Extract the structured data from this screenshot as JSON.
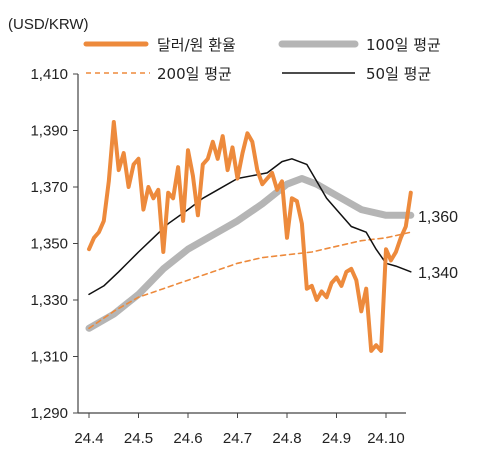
{
  "chart_data": {
    "type": "line",
    "unit_label": "(USD/KRW)",
    "ylim": [
      1290,
      1410
    ],
    "y_ticks": [
      "1,410",
      "1,390",
      "1,370",
      "1,350",
      "1,330",
      "1,310",
      "1,290"
    ],
    "y_tick_values": [
      1410,
      1390,
      1370,
      1350,
      1330,
      1310,
      1290
    ],
    "x_range": [
      24.4,
      24.105
    ],
    "x_ticks": [
      "24.4",
      "24.5",
      "24.6",
      "24.7",
      "24.8",
      "24.9",
      "24.10"
    ],
    "end_labels": [
      {
        "text": "1,360",
        "value": 1360
      },
      {
        "text": "1,340",
        "value": 1340
      }
    ],
    "colors": {
      "orange": "#ED8A3C",
      "gray": "#B5B5B5",
      "black": "#111111",
      "axis": "#444444"
    },
    "series": [
      {
        "name": "달러/원 환율",
        "style": "thick-orange",
        "x_index": [
          0,
          0.1,
          0.2,
          0.3,
          0.4,
          0.5,
          0.6,
          0.7,
          0.8,
          0.9,
          1.0,
          1.1,
          1.2,
          1.3,
          1.4,
          1.5,
          1.6,
          1.7,
          1.8,
          1.9,
          2.0,
          2.1,
          2.2,
          2.3,
          2.4,
          2.5,
          2.6,
          2.7,
          2.8,
          2.9,
          3.0,
          3.1,
          3.2,
          3.3,
          3.4,
          3.5,
          3.6,
          3.7,
          3.8,
          3.9,
          4.0,
          4.1,
          4.2,
          4.3,
          4.4,
          4.5,
          4.6,
          4.7,
          4.8,
          4.9,
          5.0,
          5.1,
          5.2,
          5.3,
          5.4,
          5.5,
          5.6,
          5.7,
          5.8,
          5.9,
          6.0,
          6.1,
          6.2,
          6.3,
          6.4,
          6.5
        ],
        "values": [
          1348,
          1352,
          1354,
          1358,
          1372,
          1393,
          1376,
          1382,
          1370,
          1378,
          1380,
          1362,
          1370,
          1366,
          1369,
          1347,
          1368,
          1366,
          1377,
          1358,
          1383,
          1374,
          1360,
          1378,
          1380,
          1386,
          1380,
          1388,
          1376,
          1384,
          1373,
          1382,
          1389,
          1386,
          1376,
          1371,
          1373,
          1375,
          1369,
          1372,
          1352,
          1366,
          1365,
          1357,
          1334,
          1335,
          1330,
          1333,
          1331,
          1336,
          1338,
          1335,
          1340,
          1341,
          1337,
          1326,
          1334,
          1312,
          1314,
          1312,
          1348,
          1344,
          1347,
          1352,
          1356,
          1368
        ]
      },
      {
        "name": "100일 평균",
        "style": "thick-gray",
        "x_index": [
          0,
          0.5,
          1.0,
          1.5,
          2.0,
          2.5,
          3.0,
          3.5,
          4.0,
          4.3,
          4.6,
          5.0,
          5.5,
          6.0,
          6.3,
          6.5
        ],
        "values": [
          1320,
          1325,
          1332,
          1341,
          1348,
          1353,
          1358,
          1364,
          1371,
          1373,
          1371,
          1367,
          1362,
          1360,
          1360,
          1360
        ]
      },
      {
        "name": "200일 평균",
        "style": "dashed-orange",
        "x_index": [
          0,
          0.5,
          1.0,
          1.5,
          2.0,
          2.5,
          3.0,
          3.5,
          4.0,
          4.5,
          5.0,
          5.5,
          6.0,
          6.5
        ],
        "values": [
          1320,
          1326,
          1331,
          1334,
          1337,
          1340,
          1343,
          1345,
          1346,
          1347,
          1349,
          1351,
          1352,
          1354
        ]
      },
      {
        "name": "50일 평균",
        "style": "thin-black",
        "x_index": [
          0,
          0.3,
          0.6,
          1.0,
          1.3,
          1.6,
          2.0,
          2.3,
          2.6,
          3.0,
          3.3,
          3.6,
          3.9,
          4.1,
          4.4,
          4.6,
          4.8,
          5.0,
          5.3,
          5.6,
          5.8,
          6.0,
          6.2,
          6.5
        ],
        "values": [
          1332,
          1335,
          1340,
          1347,
          1352,
          1357,
          1362,
          1366,
          1369,
          1373,
          1374,
          1375,
          1379,
          1380,
          1378,
          1372,
          1366,
          1362,
          1356,
          1354,
          1348,
          1343,
          1342,
          1340
        ]
      }
    ]
  }
}
